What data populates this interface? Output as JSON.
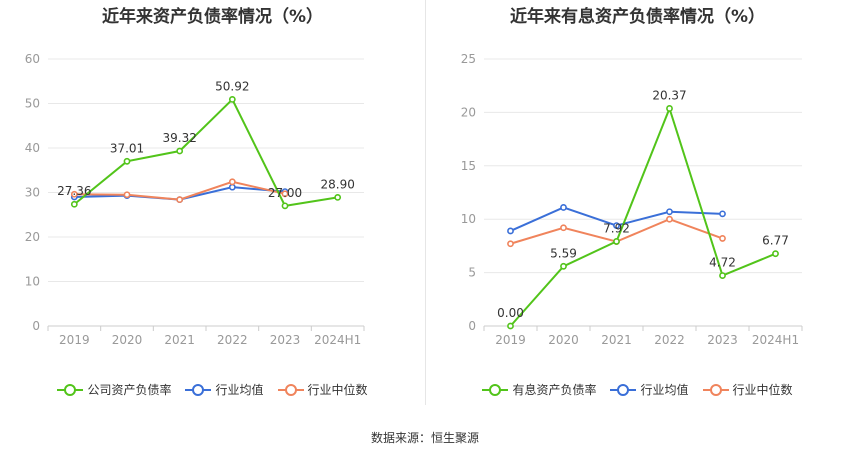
{
  "source": "数据来源：恒生聚源",
  "chart_data": [
    {
      "type": "line",
      "title": "近年来资产负债率情况（%）",
      "categories": [
        "2019",
        "2020",
        "2021",
        "2022",
        "2023",
        "2024H1"
      ],
      "ylim": [
        0,
        60
      ],
      "yticks": [
        0,
        10,
        20,
        30,
        40,
        50,
        60
      ],
      "grid": true,
      "legend_position": "bottom",
      "series": [
        {
          "name": "公司资产负债率",
          "color": "#52c41a",
          "values": [
            27.36,
            37.01,
            39.32,
            50.92,
            27.0,
            28.9
          ],
          "labels": [
            "27.36",
            "37.01",
            "39.32",
            "50.92",
            "27.00",
            "28.90"
          ]
        },
        {
          "name": "行业均值",
          "color": "#3a6fd8",
          "values": [
            29.0,
            29.3,
            28.4,
            31.2,
            30.2,
            null
          ]
        },
        {
          "name": "行业中位数",
          "color": "#f0845c",
          "values": [
            29.6,
            29.5,
            28.4,
            32.4,
            29.7,
            null
          ]
        }
      ]
    },
    {
      "type": "line",
      "title": "近年来有息资产负债率情况（%）",
      "categories": [
        "2019",
        "2020",
        "2021",
        "2022",
        "2023",
        "2024H1"
      ],
      "ylim": [
        0,
        25
      ],
      "yticks": [
        0,
        5,
        10,
        15,
        20,
        25
      ],
      "grid": true,
      "legend_position": "bottom",
      "series": [
        {
          "name": "有息资产负债率",
          "color": "#52c41a",
          "values": [
            0.0,
            5.59,
            7.92,
            20.37,
            4.72,
            6.77
          ],
          "labels": [
            "0.00",
            "5.59",
            "7.92",
            "20.37",
            "4.72",
            "6.77"
          ]
        },
        {
          "name": "行业均值",
          "color": "#3a6fd8",
          "values": [
            8.9,
            11.1,
            9.4,
            10.7,
            10.5,
            null
          ]
        },
        {
          "name": "行业中位数",
          "color": "#f0845c",
          "values": [
            7.7,
            9.2,
            7.9,
            10.0,
            8.2,
            null
          ]
        }
      ]
    }
  ]
}
